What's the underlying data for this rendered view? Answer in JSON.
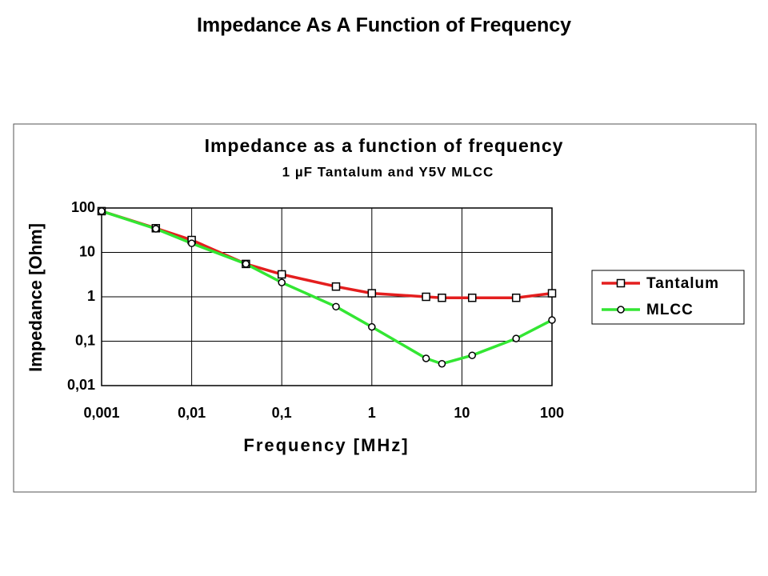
{
  "slide_title": "Impedance As A Function of Frequency",
  "chart_data": {
    "type": "line",
    "title": "Impedance as a function of frequency",
    "subtitle": "1 µF Tantalum and Y5V MLCC",
    "x_label": "Frequency [MHz]",
    "y_label": "Impedance [Ohm]",
    "x": [
      0.001,
      0.004,
      0.01,
      0.04,
      0.1,
      0.4,
      1,
      4,
      6,
      13,
      40,
      100
    ],
    "series": [
      {
        "name": "Tantalum",
        "color": "#e41e1e",
        "marker": "square",
        "values": [
          85,
          35,
          19,
          5.5,
          3.2,
          1.7,
          1.2,
          1.0,
          0.95,
          0.95,
          0.95,
          1.2
        ]
      },
      {
        "name": "MLCC",
        "color": "#33e633",
        "marker": "circle",
        "values": [
          85,
          34,
          16,
          5.5,
          2.1,
          0.6,
          0.21,
          0.041,
          0.031,
          0.048,
          0.115,
          0.3
        ]
      }
    ],
    "xlog": true,
    "ylog": true,
    "xlim": [
      0.001,
      100
    ],
    "ylim": [
      0.01,
      100
    ],
    "xticks": [
      {
        "value": 0.001,
        "label": "0,001"
      },
      {
        "value": 0.01,
        "label": "0,01"
      },
      {
        "value": 0.1,
        "label": "0,1"
      },
      1,
      10,
      100
    ],
    "yticks": [
      {
        "value": 0.01,
        "label": "0,01"
      },
      {
        "value": 0.1,
        "label": "0,1"
      },
      1,
      10,
      100
    ],
    "grid": true,
    "legend": "right"
  }
}
